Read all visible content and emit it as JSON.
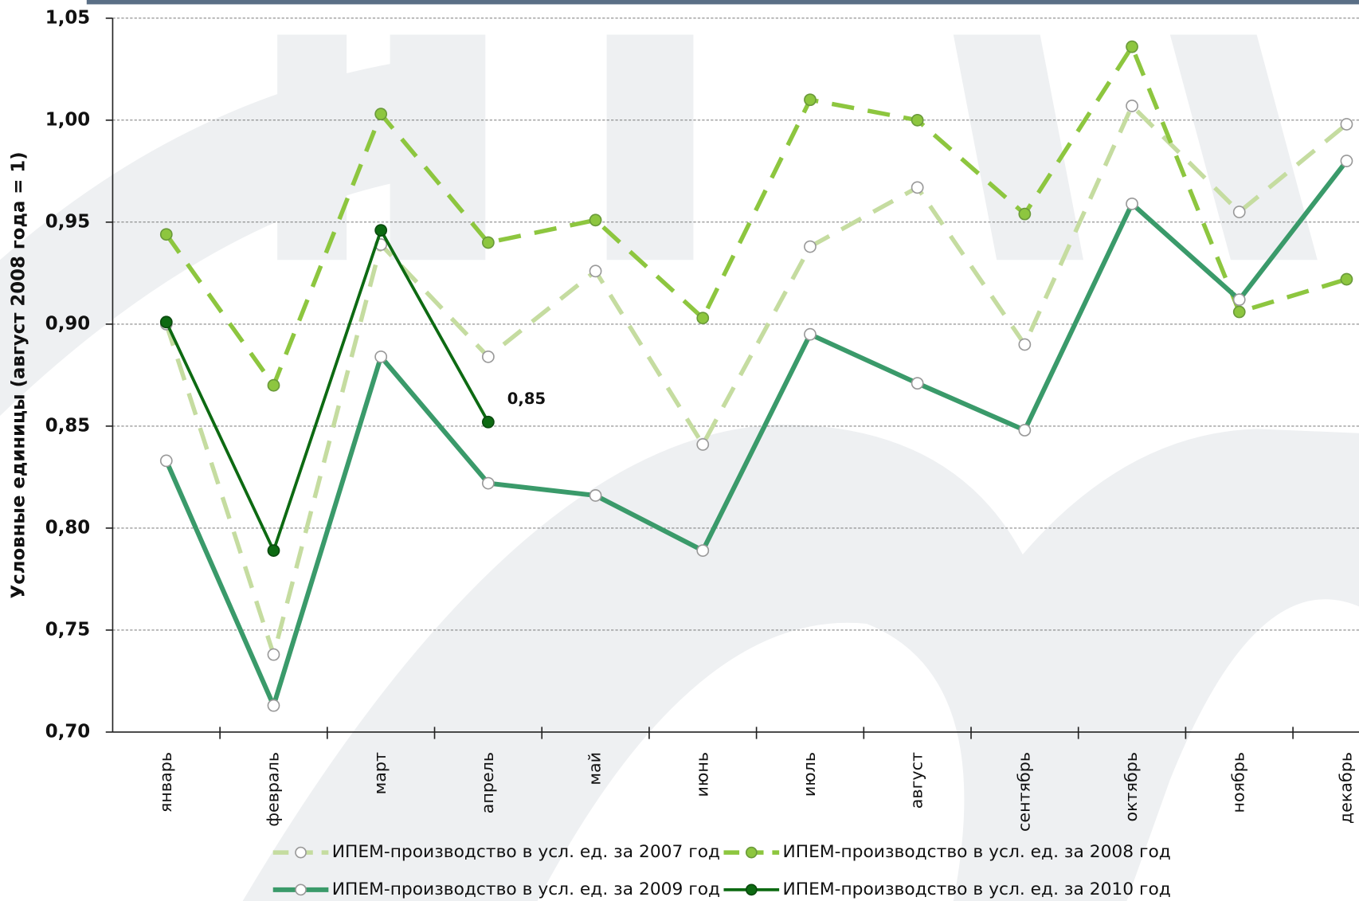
{
  "chart_data": {
    "type": "line",
    "y_label": "Условные единицы (август 2008 года = 1)",
    "categories": [
      "январь",
      "февраль",
      "март",
      "апрель",
      "май",
      "июнь",
      "июль",
      "август",
      "сентябрь",
      "октябрь",
      "ноябрь",
      "декабрь"
    ],
    "ylim": [
      0.7,
      1.05
    ],
    "yticks": [
      {
        "value": 0.7,
        "label": "0,70"
      },
      {
        "value": 0.75,
        "label": "0,75"
      },
      {
        "value": 0.8,
        "label": "0,80"
      },
      {
        "value": 0.85,
        "label": "0,85"
      },
      {
        "value": 0.9,
        "label": "0,90"
      },
      {
        "value": 0.95,
        "label": "0,95"
      },
      {
        "value": 1.0,
        "label": "1,00"
      },
      {
        "value": 1.05,
        "label": "1,05"
      }
    ],
    "grid": true,
    "series": [
      {
        "name": "ИПЕМ-производство в усл. ед. за 2007 год",
        "color": "#c5dca0",
        "dashed": true,
        "marker": "open",
        "values": [
          0.9,
          0.738,
          0.939,
          0.884,
          0.926,
          0.841,
          0.938,
          0.967,
          0.89,
          1.007,
          0.955,
          0.998
        ]
      },
      {
        "name": "ИПЕМ-производство в усл. ед. за 2008 год",
        "color": "#8dc63f",
        "dashed": true,
        "marker": "filled",
        "values": [
          0.944,
          0.87,
          1.003,
          0.94,
          0.951,
          0.903,
          1.01,
          1.0,
          0.954,
          1.036,
          0.906,
          0.922
        ]
      },
      {
        "name": "ИПЕМ-производство в усл. ед. за 2009 год",
        "color": "#3a9a6a",
        "dashed": false,
        "marker": "open",
        "values": [
          0.833,
          0.713,
          0.884,
          0.822,
          0.816,
          0.789,
          0.895,
          0.871,
          0.848,
          0.959,
          0.912,
          0.98
        ]
      },
      {
        "name": "ИПЕМ-производство в усл. ед. за 2010 год",
        "color": "#0d6a12",
        "dashed": false,
        "marker": "filled",
        "values": [
          0.901,
          0.789,
          0.946,
          0.852,
          null,
          null,
          null,
          null,
          null,
          null,
          null,
          null
        ],
        "value_labels": [
          null,
          null,
          null,
          "0,85",
          null,
          null,
          null,
          null,
          null,
          null,
          null,
          null
        ]
      }
    ]
  }
}
